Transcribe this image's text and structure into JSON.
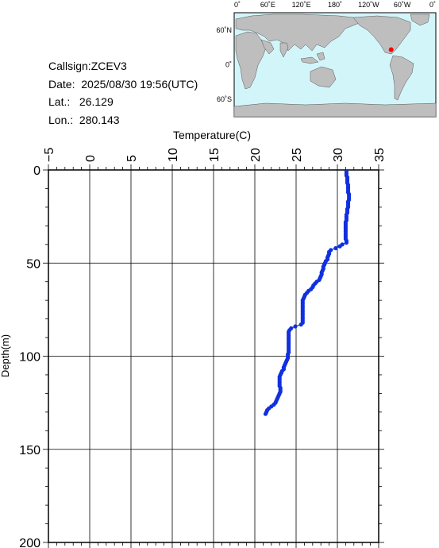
{
  "info": {
    "callsign": "Callsign:ZCEV3",
    "date": "Date:  2025/08/30 19:56(UTC)",
    "lat": "Lat.:   26.129",
    "lon": "Lon.:  280.143"
  },
  "map": {
    "top_labels": [
      "0˚",
      "60˚E",
      "120˚E",
      "180˚",
      "120˚W",
      "60˚W",
      "0˚"
    ],
    "left_labels": [
      "60˚N",
      "0˚",
      "60˚S"
    ],
    "ocean_color": "#d2f5fa",
    "land_color": "#bebebe",
    "marker_color": "#ff0000",
    "marker": {
      "lon": 280.143,
      "lat": 26.129
    }
  },
  "colors": {
    "profile_points": "#1030e0"
  },
  "chart_data": {
    "type": "scatter",
    "xlabel": "Temperature(C)",
    "ylabel": "Depth(m)",
    "xlim": [
      -5,
      35
    ],
    "ylim": [
      200,
      0
    ],
    "x_ticks": [
      "-5",
      "0",
      "5",
      "10",
      "15",
      "20",
      "25",
      "30",
      "35"
    ],
    "y_ticks": [
      "0",
      "50",
      "100",
      "150",
      "200"
    ],
    "grid": true,
    "series": [
      {
        "points": [
          [
            31.1,
            1
          ],
          [
            31.1,
            2
          ],
          [
            31.1,
            3
          ],
          [
            31.2,
            4
          ],
          [
            31.2,
            5
          ],
          [
            31.2,
            6
          ],
          [
            31.2,
            7
          ],
          [
            31.3,
            8
          ],
          [
            31.3,
            9
          ],
          [
            31.3,
            10
          ],
          [
            31.3,
            11
          ],
          [
            31.3,
            12
          ],
          [
            31.4,
            13
          ],
          [
            31.4,
            14
          ],
          [
            31.4,
            15
          ],
          [
            31.4,
            16
          ],
          [
            31.3,
            17
          ],
          [
            31.3,
            18
          ],
          [
            31.3,
            19
          ],
          [
            31.3,
            20
          ],
          [
            31.2,
            21
          ],
          [
            31.2,
            22
          ],
          [
            31.2,
            23
          ],
          [
            31.1,
            24
          ],
          [
            31.1,
            25
          ],
          [
            31.1,
            26
          ],
          [
            31.1,
            27
          ],
          [
            31.0,
            28
          ],
          [
            31.0,
            29
          ],
          [
            31.0,
            30
          ],
          [
            31.0,
            31
          ],
          [
            31.0,
            32
          ],
          [
            31.0,
            33
          ],
          [
            31.0,
            34
          ],
          [
            31.0,
            35
          ],
          [
            31.0,
            36
          ],
          [
            31.0,
            37
          ],
          [
            31.1,
            38
          ],
          [
            31.1,
            39
          ],
          [
            30.6,
            40
          ],
          [
            30.3,
            41
          ],
          [
            29.8,
            42
          ],
          [
            29.2,
            43
          ],
          [
            29.0,
            44
          ],
          [
            29.0,
            45
          ],
          [
            28.9,
            46
          ],
          [
            28.8,
            47
          ],
          [
            28.8,
            48
          ],
          [
            28.6,
            49
          ],
          [
            28.5,
            50
          ],
          [
            28.4,
            51
          ],
          [
            28.3,
            52
          ],
          [
            28.3,
            53
          ],
          [
            28.2,
            54
          ],
          [
            28.1,
            55
          ],
          [
            28.1,
            56
          ],
          [
            28.0,
            57
          ],
          [
            27.9,
            58
          ],
          [
            27.8,
            59
          ],
          [
            27.5,
            60
          ],
          [
            27.3,
            61
          ],
          [
            27.1,
            62
          ],
          [
            27.0,
            63
          ],
          [
            26.8,
            64
          ],
          [
            26.5,
            65
          ],
          [
            26.3,
            66
          ],
          [
            26.1,
            67
          ],
          [
            26.0,
            68
          ],
          [
            25.9,
            69
          ],
          [
            25.8,
            70
          ],
          [
            25.8,
            71
          ],
          [
            25.8,
            72
          ],
          [
            25.8,
            73
          ],
          [
            25.8,
            74
          ],
          [
            25.8,
            75
          ],
          [
            25.8,
            76
          ],
          [
            25.8,
            77
          ],
          [
            25.8,
            78
          ],
          [
            25.8,
            79
          ],
          [
            25.8,
            80
          ],
          [
            25.8,
            81
          ],
          [
            25.8,
            82
          ],
          [
            25.6,
            83
          ],
          [
            24.9,
            84
          ],
          [
            24.4,
            85
          ],
          [
            24.2,
            86
          ],
          [
            24.1,
            87
          ],
          [
            24.1,
            88
          ],
          [
            24.1,
            89
          ],
          [
            24.1,
            90
          ],
          [
            24.1,
            91
          ],
          [
            24.1,
            92
          ],
          [
            24.1,
            93
          ],
          [
            24.1,
            94
          ],
          [
            24.1,
            95
          ],
          [
            24.1,
            96
          ],
          [
            24.1,
            97
          ],
          [
            24.1,
            98
          ],
          [
            24.0,
            99
          ],
          [
            24.0,
            100
          ],
          [
            24.0,
            101
          ],
          [
            23.9,
            102
          ],
          [
            23.8,
            103
          ],
          [
            23.7,
            104
          ],
          [
            23.6,
            105
          ],
          [
            23.5,
            106
          ],
          [
            23.5,
            107
          ],
          [
            23.3,
            108
          ],
          [
            23.2,
            109
          ],
          [
            23.1,
            110
          ],
          [
            23.0,
            111
          ],
          [
            23.0,
            112
          ],
          [
            23.0,
            113
          ],
          [
            23.0,
            114
          ],
          [
            23.0,
            115
          ],
          [
            23.0,
            116
          ],
          [
            23.1,
            117
          ],
          [
            23.1,
            118
          ],
          [
            23.1,
            119
          ],
          [
            23.0,
            120
          ],
          [
            22.9,
            121
          ],
          [
            22.8,
            122
          ],
          [
            22.7,
            123
          ],
          [
            22.6,
            124
          ],
          [
            22.5,
            125
          ],
          [
            22.3,
            126
          ],
          [
            22.0,
            127
          ],
          [
            21.7,
            128
          ],
          [
            21.5,
            129
          ],
          [
            21.4,
            130
          ],
          [
            21.3,
            131
          ]
        ]
      }
    ]
  }
}
